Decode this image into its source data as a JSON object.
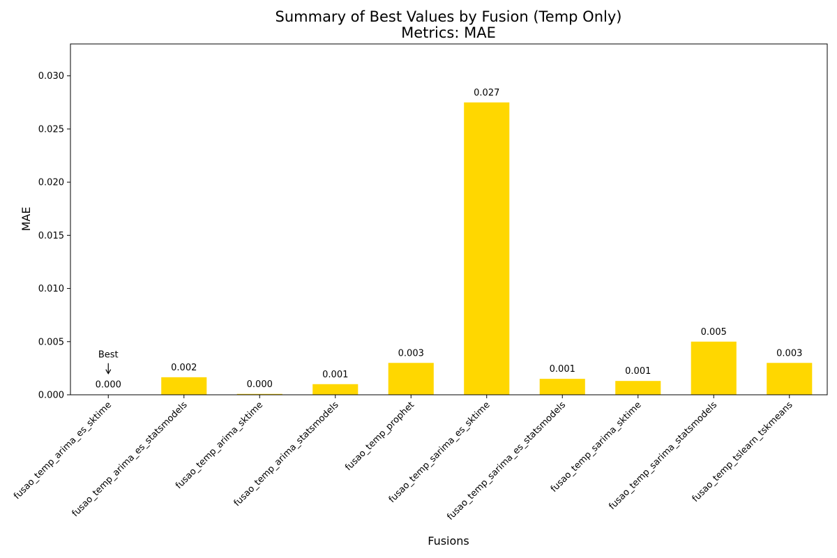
{
  "chart_data": {
    "type": "bar",
    "title": "Summary of Best Values by Fusion (Temp Only)",
    "subtitle": "Metrics: MAE",
    "xlabel": "Fusions",
    "ylabel": "MAE",
    "ylim": [
      0,
      0.033
    ],
    "yticks": [
      "0.000",
      "0.005",
      "0.010",
      "0.015",
      "0.020",
      "0.025",
      "0.030"
    ],
    "ytick_values": [
      0,
      0.005,
      0.01,
      0.015,
      0.02,
      0.025,
      0.03
    ],
    "grid": false,
    "bar_color": "#FFD700",
    "highlight_color": "#008000",
    "categories": [
      "fusao_temp_arima_es_sktime",
      "fusao_temp_arima_es_statsmodels",
      "fusao_temp_arima_sktime",
      "fusao_temp_arima_statsmodels",
      "fusao_temp_prophet",
      "fusao_temp_sarima_es_sktime",
      "fusao_temp_sarima_es_statsmodels",
      "fusao_temp_sarima_sktime",
      "fusao_temp_sarima_statsmodels",
      "fusao_temp_tslearn_tskmeans"
    ],
    "values": [
      2e-05,
      0.00165,
      8e-05,
      0.001,
      0.003,
      0.0275,
      0.0015,
      0.0013,
      0.005,
      0.003
    ],
    "value_labels": [
      "0.000",
      "0.002",
      "0.000",
      "0.001",
      "0.003",
      "0.027",
      "0.001",
      "0.001",
      "0.005",
      "0.003"
    ],
    "best_index": 0,
    "best_annotation": "Best",
    "best_arrow": "↓"
  }
}
